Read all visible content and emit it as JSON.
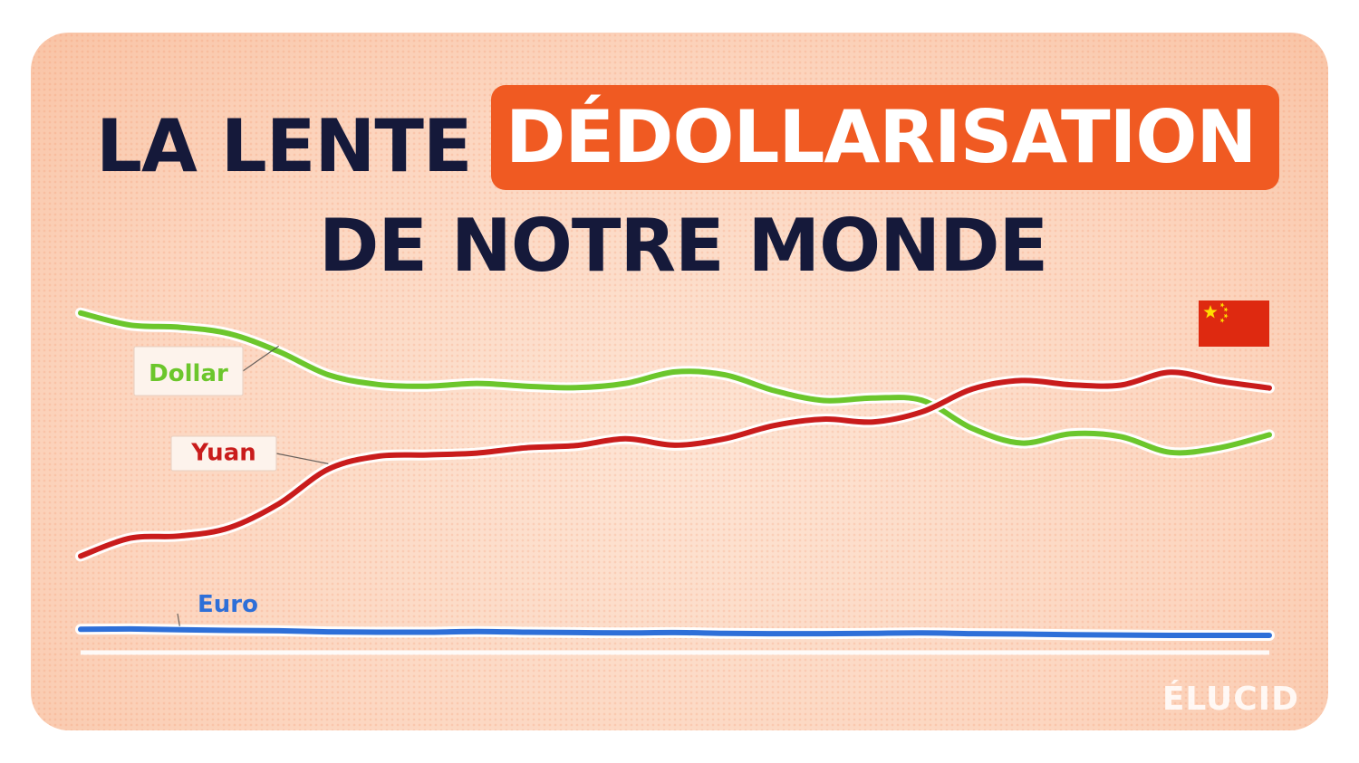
{
  "header": {
    "title_part1": "LA LENTE",
    "title_highlight": "DÉDOLLARISATION",
    "title_line2": "DE NOTRE MONDE"
  },
  "brand": {
    "logo_text": "ÉLUCID"
  },
  "icons": {
    "flag": "china-flag-icon"
  },
  "colors": {
    "highlight": "#f05a22",
    "title_text": "#15193a",
    "dollar": "#6cc62c",
    "yuan": "#c91c1c",
    "euro": "#2e6fd8",
    "flag_red": "#de2910",
    "flag_star": "#ffde00"
  },
  "chart_data": {
    "type": "line",
    "title": "",
    "xlabel": "",
    "ylabel": "",
    "x": [
      0,
      1,
      2,
      3,
      4,
      5,
      6,
      7,
      8,
      9,
      10,
      11,
      12,
      13,
      14,
      15,
      16,
      17,
      18,
      19,
      20,
      21,
      22,
      23,
      24
    ],
    "ylim": [
      0,
      100
    ],
    "grid": false,
    "legend": "inline labels",
    "series": [
      {
        "name": "Dollar",
        "color": "#6cc62c",
        "values": [
          95.0,
          91.6,
          91.0,
          89.2,
          84.2,
          77.7,
          75.0,
          74.5,
          75.3,
          74.5,
          74.1,
          75.3,
          78.5,
          77.7,
          73.3,
          70.5,
          71.2,
          70.5,
          62.7,
          58.6,
          61.2,
          60.4,
          56.0,
          57.3,
          60.9
        ]
      },
      {
        "name": "Yuan",
        "color": "#c91c1c",
        "values": [
          27.0,
          32.0,
          32.6,
          34.9,
          41.6,
          51.3,
          54.9,
          55.3,
          55.8,
          57.3,
          57.9,
          59.8,
          58.0,
          59.8,
          63.5,
          65.3,
          64.5,
          67.4,
          73.7,
          76.1,
          74.9,
          74.8,
          78.4,
          75.9,
          74.0
        ]
      },
      {
        "name": "Euro",
        "color": "#2e6fd8",
        "values": [
          6.5,
          6.6,
          6.4,
          6.2,
          6.1,
          5.8,
          5.7,
          5.7,
          5.9,
          5.7,
          5.6,
          5.5,
          5.6,
          5.4,
          5.3,
          5.3,
          5.4,
          5.5,
          5.3,
          5.2,
          5.0,
          4.9,
          4.8,
          4.8,
          4.8
        ]
      }
    ]
  }
}
